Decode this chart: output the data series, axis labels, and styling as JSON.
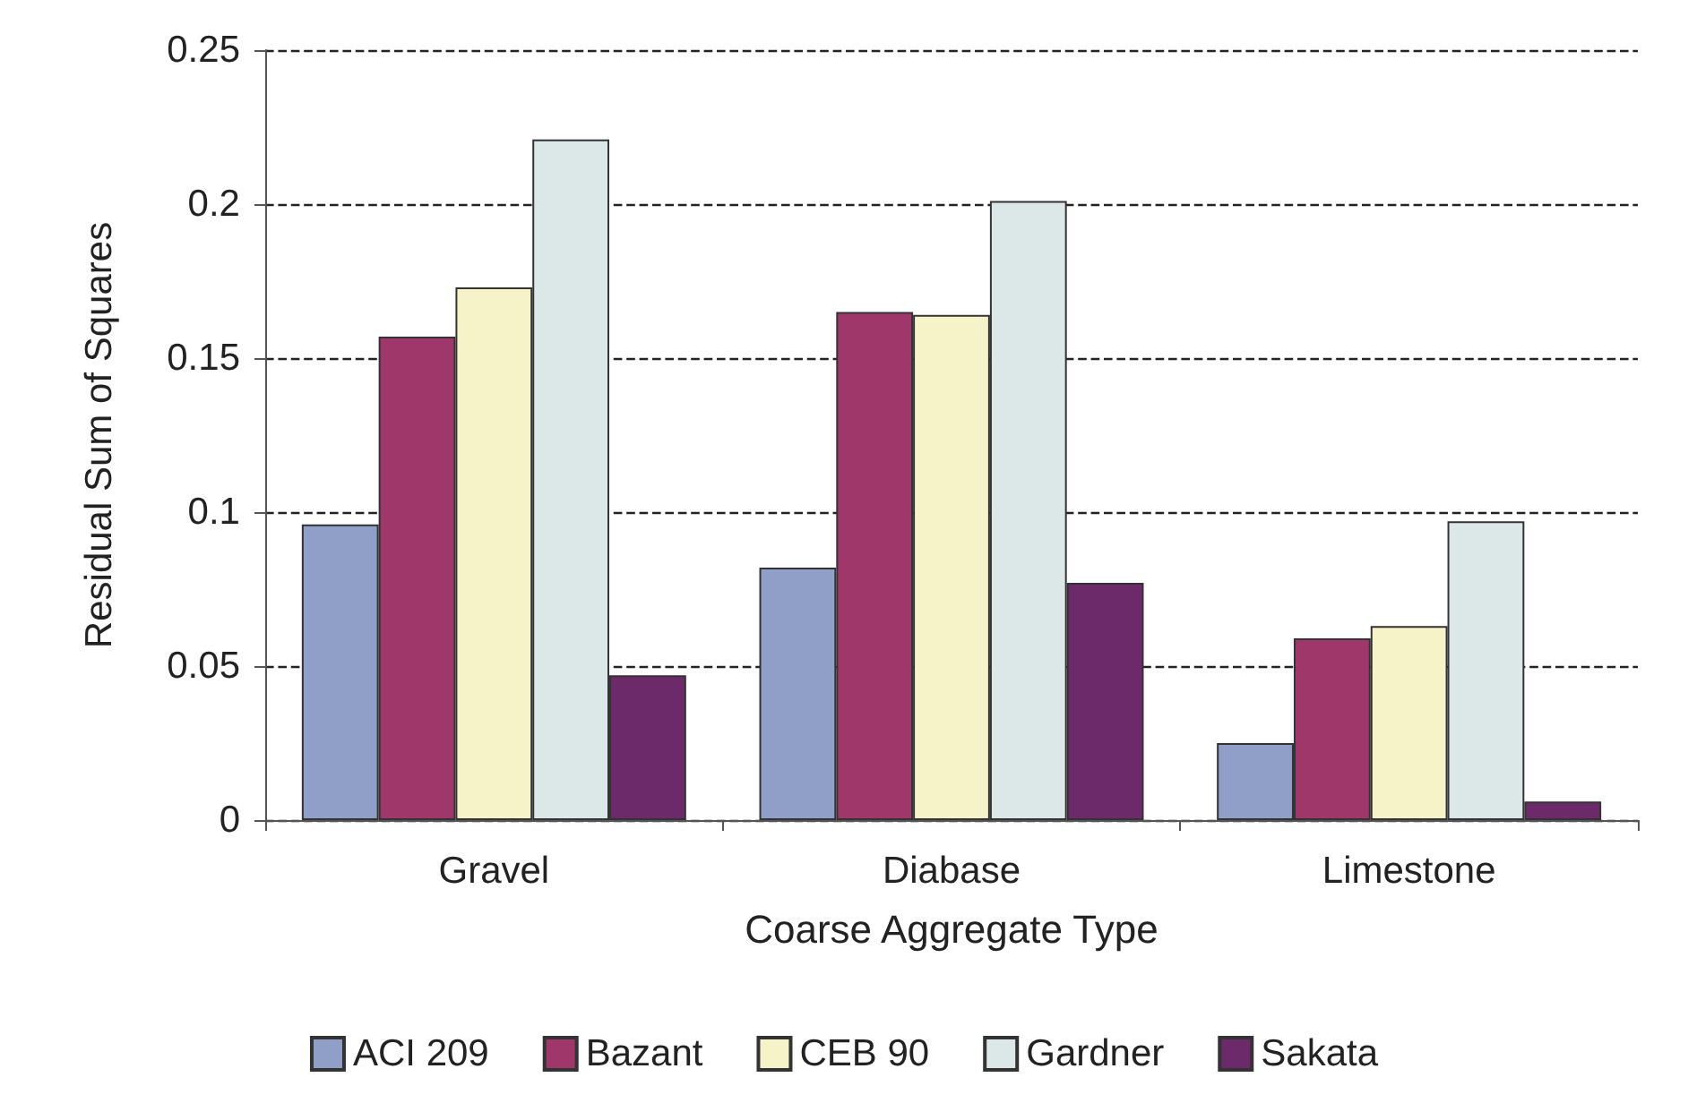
{
  "chart_data": {
    "type": "bar",
    "xlabel": "Coarse Aggregate Type",
    "ylabel": "Residual Sum of Squares",
    "categories": [
      "Gravel",
      "Diabase",
      "Limestone"
    ],
    "series": [
      {
        "name": "ACI 209",
        "color": "#8f9fc8",
        "values": [
          0.096,
          0.082,
          0.025
        ]
      },
      {
        "name": "Bazant",
        "color": "#a0376a",
        "values": [
          0.157,
          0.165,
          0.059
        ]
      },
      {
        "name": "CEB 90",
        "color": "#f7f3c8",
        "values": [
          0.173,
          0.164,
          0.063
        ]
      },
      {
        "name": "Gardner",
        "color": "#dce8e8",
        "values": [
          0.221,
          0.201,
          0.097
        ]
      },
      {
        "name": "Sakata",
        "color": "#6c2a6a",
        "values": [
          0.047,
          0.077,
          0.006
        ]
      }
    ],
    "ylim": [
      0,
      0.25
    ],
    "yticks": [
      0,
      0.05,
      0.1,
      0.15,
      0.2,
      0.25
    ],
    "grid": "y",
    "legend": "bottom"
  }
}
